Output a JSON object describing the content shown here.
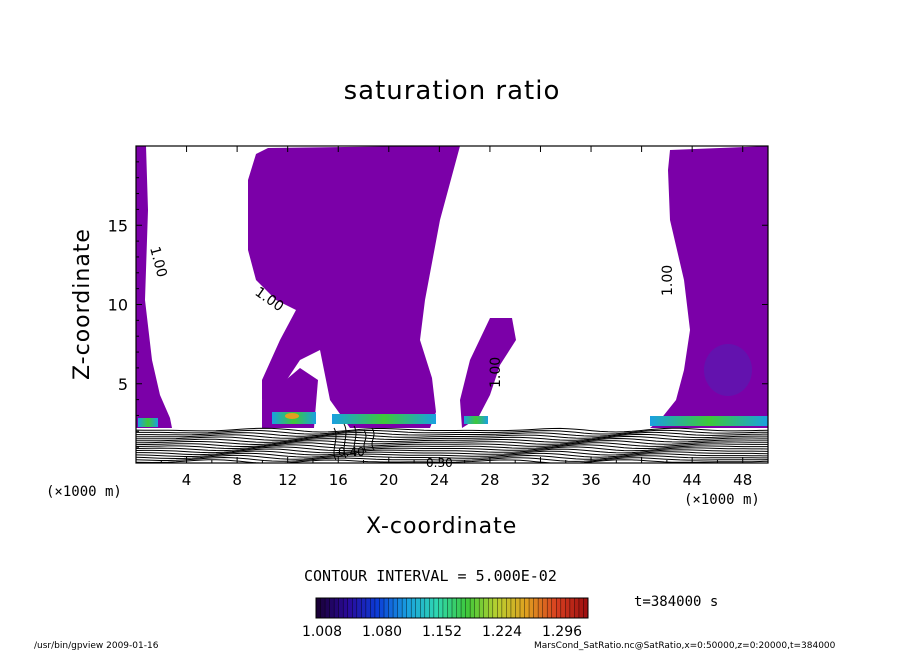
{
  "chart_data": {
    "type": "heatmap",
    "title": "saturation ratio",
    "xlabel": "X-coordinate",
    "ylabel": "Z-coordinate",
    "x_unit": "(×1000 m)",
    "xlim": [
      0,
      50
    ],
    "ylim": [
      0,
      20
    ],
    "x_ticks": [
      "4",
      "8",
      "12",
      "16",
      "20",
      "24",
      "28",
      "32",
      "36",
      "40",
      "44",
      "48"
    ],
    "y_ticks": [
      "5",
      "10",
      "15"
    ],
    "contour_interval": "CONTOUR INTERVAL = 5.000E-02",
    "contour_labels": [
      "1.00",
      "1.00",
      "1.00",
      "1.00",
      "0.40",
      "0.30"
    ],
    "colorbar": {
      "ticks": [
        "1.008",
        "1.080",
        "1.152",
        "1.224",
        "1.296"
      ],
      "colors": [
        "#1a0038",
        "#2a0a9a",
        "#0b3dd8",
        "#1aa0e0",
        "#2fd8b0",
        "#3ec83a",
        "#b8d030",
        "#e0a020",
        "#d84020",
        "#a01010"
      ]
    },
    "fill_color": "#7b00a8",
    "time": "t=384000 s"
  },
  "footer": {
    "left": "/usr/bin/gpview   2009-01-16",
    "right": "MarsCond_SatRatio.nc@SatRatio,x=0:50000,z=0:20000,t=384000"
  }
}
